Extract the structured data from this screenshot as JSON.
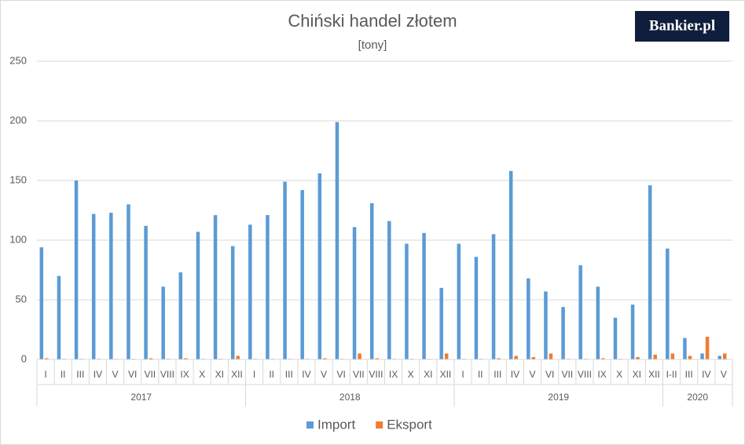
{
  "chart_data": {
    "type": "bar",
    "title": "Chiński handel złotem",
    "subtitle": "[tony]",
    "logo": "Bankier.pl",
    "groups": [
      {
        "name": "2017",
        "categories": [
          "I",
          "II",
          "III",
          "IV",
          "V",
          "VI",
          "VII",
          "VIII",
          "IX",
          "X",
          "XI",
          "XII"
        ]
      },
      {
        "name": "2018",
        "categories": [
          "I",
          "II",
          "III",
          "IV",
          "V",
          "VI",
          "VII",
          "VIII",
          "IX",
          "X",
          "XI",
          "XII"
        ]
      },
      {
        "name": "2019",
        "categories": [
          "I",
          "II",
          "III",
          "IV",
          "V",
          "VI",
          "VII",
          "VIII",
          "IX",
          "X",
          "XI",
          "XII"
        ]
      },
      {
        "name": "2020",
        "categories": [
          "I-II",
          "III",
          "IV",
          "V"
        ]
      }
    ],
    "series": [
      {
        "name": "Import",
        "color": "#5b9bd5",
        "values": [
          94,
          70,
          150,
          122,
          123,
          130,
          112,
          61,
          73,
          107,
          121,
          95,
          113,
          121,
          149,
          142,
          156,
          199,
          111,
          131,
          116,
          97,
          106,
          60,
          97,
          86,
          105,
          158,
          68,
          57,
          44,
          79,
          61,
          35,
          46,
          146,
          93,
          18,
          5,
          3
        ]
      },
      {
        "name": "Eksport",
        "color": "#ed7d31",
        "values": [
          1,
          0.5,
          0.5,
          0.5,
          0.5,
          0.5,
          1,
          0.5,
          1,
          0.5,
          0.5,
          3,
          0.5,
          0.5,
          0.5,
          0.5,
          1,
          0.5,
          5,
          1,
          0.5,
          0.5,
          0.5,
          5,
          0.5,
          0.5,
          1,
          3,
          2,
          5,
          0.5,
          0.5,
          1,
          0.5,
          2,
          4,
          5,
          3,
          19,
          5
        ]
      }
    ],
    "ylim": [
      0,
      250
    ],
    "yticks": [
      0,
      50,
      100,
      150,
      200,
      250
    ],
    "grid": true,
    "legend": "bottom"
  }
}
